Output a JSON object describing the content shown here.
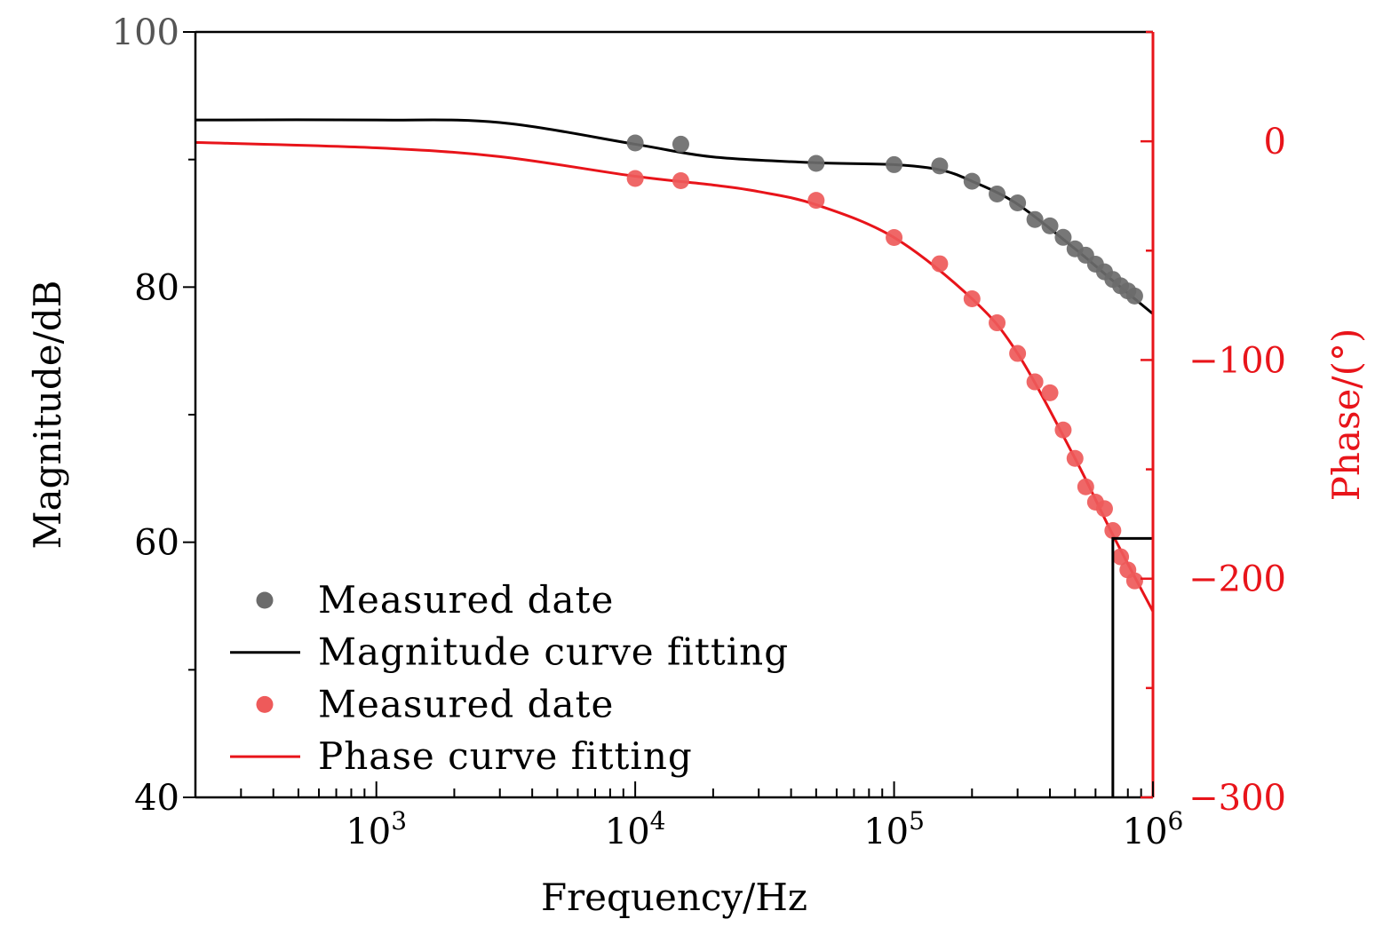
{
  "chart_data": {
    "type": "line",
    "title": "",
    "xlabel": "Frequency/Hz",
    "ylabel": "Magnitude/dB",
    "y2label": "Phase/(°)",
    "xscale": "log",
    "xlim": [
      200,
      1000000
    ],
    "ylim": [
      40,
      100
    ],
    "y2lim": [
      -300,
      50
    ],
    "grid": false,
    "legend_position": "bottom-left",
    "x_ticks": [
      {
        "value": 1000,
        "base": "10",
        "exp": "3"
      },
      {
        "value": 10000,
        "base": "10",
        "exp": "4"
      },
      {
        "value": 100000,
        "base": "10",
        "exp": "5"
      },
      {
        "value": 1000000,
        "base": "10",
        "exp": "6"
      }
    ],
    "y_ticks": [
      {
        "value": 40,
        "label": "40"
      },
      {
        "value": 60,
        "label": "60"
      },
      {
        "value": 80,
        "label": "80"
      },
      {
        "value": 100,
        "label": "100"
      }
    ],
    "y2_ticks": [
      {
        "value": 0,
        "label": "0"
      },
      {
        "value": -100,
        "label": "−100"
      },
      {
        "value": -200,
        "label": "−200"
      },
      {
        "value": -300,
        "label": "−300"
      }
    ],
    "colors": {
      "magnitude_points": "#6b6b6b",
      "magnitude_line": "#000000",
      "phase_points": "#ee5a5a",
      "phase_line": "#e8141a",
      "axis_right": "#e8141a"
    },
    "series": [
      {
        "name": "Measured date",
        "kind": "scatter",
        "axis": "left",
        "color_key": "magnitude_points",
        "x": [
          10000,
          15000,
          50000,
          100000,
          150000,
          200000,
          250000,
          300000,
          350000,
          400000,
          450000,
          500000,
          550000,
          600000,
          650000,
          700000,
          750000,
          800000,
          850000
        ],
        "y": [
          91.3,
          91.2,
          89.7,
          89.6,
          89.5,
          88.3,
          87.3,
          86.6,
          85.3,
          84.8,
          83.9,
          83.0,
          82.5,
          81.8,
          81.2,
          80.6,
          80.1,
          79.7,
          79.3
        ]
      },
      {
        "name": "Magnitude curve fitting",
        "kind": "line",
        "axis": "left",
        "color_key": "magnitude_line",
        "x": [
          200,
          1000,
          3000,
          10000,
          20000,
          50000,
          100000,
          150000,
          200000,
          300000,
          500000,
          700000,
          1000000
        ],
        "y": [
          93.1,
          93.1,
          92.9,
          91.2,
          90.2,
          89.75,
          89.6,
          89.2,
          88.3,
          86.5,
          83.0,
          80.5,
          77.9
        ]
      },
      {
        "name": "Measured date",
        "kind": "scatter",
        "axis": "right",
        "color_key": "phase_points",
        "x": [
          10000,
          15000,
          50000,
          100000,
          150000,
          200000,
          250000,
          300000,
          350000,
          400000,
          450000,
          500000,
          550000,
          600000,
          650000,
          700000,
          750000,
          800000,
          850000
        ],
        "y": [
          -17,
          -18,
          -27,
          -44,
          -56,
          -72,
          -83,
          -97,
          -110,
          -115,
          -132,
          -145,
          -158,
          -165,
          -168,
          -178,
          -190,
          -196,
          -201
        ]
      },
      {
        "name": "Phase curve fitting",
        "kind": "line",
        "axis": "right",
        "color_key": "phase_line",
        "x": [
          200,
          1000,
          3000,
          10000,
          20000,
          30000,
          50000,
          100000,
          200000,
          300000,
          500000,
          700000,
          1000000
        ],
        "y": [
          -0.5,
          -3,
          -7,
          -16,
          -20,
          -23,
          -29,
          -44,
          -72,
          -97,
          -145,
          -180,
          -215
        ]
      }
    ],
    "annotation_box": {
      "x": [
        700000,
        1000000
      ],
      "y": [
        40,
        60.3
      ],
      "axis": "left"
    }
  }
}
